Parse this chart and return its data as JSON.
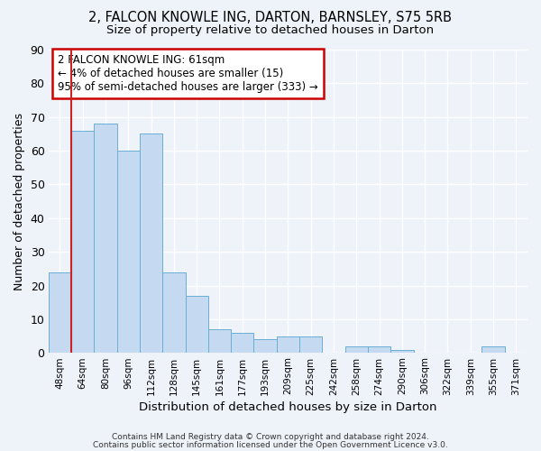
{
  "title_line1": "2, FALCON KNOWLE ING, DARTON, BARNSLEY, S75 5RB",
  "title_line2": "Size of property relative to detached houses in Darton",
  "xlabel": "Distribution of detached houses by size in Darton",
  "ylabel": "Number of detached properties",
  "annotation_line1": "2 FALCON KNOWLE ING: 61sqm",
  "annotation_line2": "← 4% of detached houses are smaller (15)",
  "annotation_line3": "95% of semi-detached houses are larger (333) →",
  "categories": [
    "48sqm",
    "64sqm",
    "80sqm",
    "96sqm",
    "112sqm",
    "128sqm",
    "145sqm",
    "161sqm",
    "177sqm",
    "193sqm",
    "209sqm",
    "225sqm",
    "242sqm",
    "258sqm",
    "274sqm",
    "290sqm",
    "306sqm",
    "322sqm",
    "339sqm",
    "355sqm",
    "371sqm"
  ],
  "values": [
    24,
    66,
    68,
    60,
    65,
    24,
    17,
    7,
    6,
    4,
    5,
    5,
    0,
    2,
    2,
    1,
    0,
    0,
    0,
    2,
    0
  ],
  "bar_color": "#c5d9f0",
  "bar_edge_color": "#6aaed6",
  "highlight_color": "#cc2222",
  "background_color": "#eef2f9",
  "grid_color": "#ffffff",
  "annotation_box_color": "#ffffff",
  "annotation_box_edge": "#cc0000",
  "ylim": [
    0,
    90
  ],
  "yticks": [
    0,
    10,
    20,
    30,
    40,
    50,
    60,
    70,
    80,
    90
  ],
  "footer_line1": "Contains HM Land Registry data © Crown copyright and database right 2024.",
  "footer_line2": "Contains public sector information licensed under the Open Government Licence v3.0."
}
